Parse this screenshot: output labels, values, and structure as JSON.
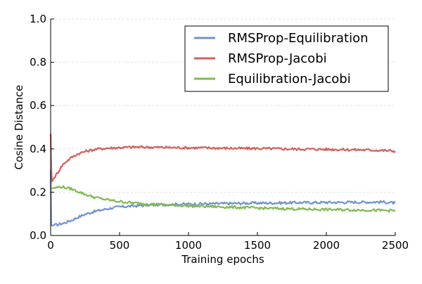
{
  "chart_data": {
    "type": "line",
    "xlabel": "Training epochs",
    "ylabel": "Cosine Distance",
    "xlim": [
      0,
      2500
    ],
    "ylim": [
      0,
      1.0
    ],
    "xticks": [
      0,
      500,
      1000,
      1500,
      2000,
      2500
    ],
    "xtick_labels": [
      "0",
      "500",
      "1000",
      "1500",
      "2000",
      "2500"
    ],
    "yticks": [
      0.0,
      0.2,
      0.4,
      0.6,
      0.8,
      1.0
    ],
    "ytick_labels": [
      "0.0",
      "0.2",
      "0.4",
      "0.6",
      "0.8",
      "1.0"
    ],
    "grid": "horizontal-dashed",
    "legend_position": "top-right",
    "series": [
      {
        "name": "RMSProp-Equilibration",
        "color": "#7093cf",
        "x": [
          0,
          5,
          10,
          25,
          50,
          100,
          150,
          200,
          250,
          300,
          350,
          400,
          450,
          500,
          600,
          700,
          800,
          900,
          1000,
          1100,
          1200,
          1300,
          1400,
          1500,
          1600,
          1700,
          1800,
          1900,
          2000,
          2100,
          2200,
          2300,
          2400,
          2500
        ],
        "y": [
          0.3,
          0.05,
          0.045,
          0.048,
          0.05,
          0.058,
          0.07,
          0.085,
          0.098,
          0.108,
          0.115,
          0.122,
          0.128,
          0.132,
          0.136,
          0.14,
          0.142,
          0.144,
          0.145,
          0.146,
          0.147,
          0.148,
          0.149,
          0.15,
          0.15,
          0.151,
          0.152,
          0.152,
          0.153,
          0.153,
          0.154,
          0.154,
          0.155,
          0.15
        ]
      },
      {
        "name": "RMSProp-Jacobi",
        "color": "#d2605f",
        "x": [
          0,
          5,
          10,
          20,
          40,
          60,
          80,
          100,
          150,
          200,
          250,
          300,
          350,
          400,
          500,
          600,
          700,
          800,
          900,
          1000,
          1100,
          1200,
          1300,
          1400,
          1500,
          1600,
          1700,
          1800,
          1900,
          2000,
          2100,
          2200,
          2300,
          2400,
          2500
        ],
        "y": [
          0.47,
          0.3,
          0.25,
          0.26,
          0.28,
          0.3,
          0.32,
          0.335,
          0.36,
          0.378,
          0.388,
          0.395,
          0.4,
          0.403,
          0.406,
          0.408,
          0.408,
          0.407,
          0.406,
          0.405,
          0.405,
          0.404,
          0.403,
          0.402,
          0.402,
          0.401,
          0.4,
          0.399,
          0.399,
          0.398,
          0.397,
          0.396,
          0.395,
          0.393,
          0.39
        ]
      },
      {
        "name": "Equilibration-Jacobi",
        "color": "#82b955",
        "x": [
          0,
          10,
          25,
          50,
          75,
          100,
          150,
          200,
          250,
          300,
          350,
          400,
          450,
          500,
          600,
          700,
          800,
          900,
          1000,
          1100,
          1200,
          1300,
          1400,
          1500,
          1600,
          1700,
          1800,
          1900,
          2000,
          2100,
          2200,
          2300,
          2400,
          2500
        ],
        "y": [
          0.215,
          0.218,
          0.22,
          0.222,
          0.225,
          0.222,
          0.215,
          0.203,
          0.19,
          0.18,
          0.172,
          0.166,
          0.161,
          0.157,
          0.15,
          0.146,
          0.143,
          0.14,
          0.137,
          0.135,
          0.133,
          0.131,
          0.129,
          0.127,
          0.125,
          0.124,
          0.122,
          0.121,
          0.12,
          0.119,
          0.118,
          0.117,
          0.116,
          0.115
        ]
      }
    ]
  }
}
